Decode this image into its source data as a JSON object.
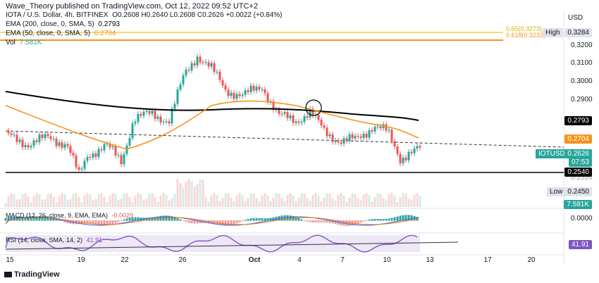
{
  "header": {
    "publisher": "Wave_Theory published on TradingView.com, Oct 12, 2022 09:52 UTC+2",
    "currency_label": "USD"
  },
  "legend": {
    "symbol_line": "IOTA / U.S. Dollar, 4h, BITFINEX",
    "ohlc": "O0.2608 H0.2640 L0.2608 C0.2626 +0.0022 (+0.84%)",
    "ema200_label": "EMA (200, close, 0, SMA, 5)",
    "ema200_value": "0.2793",
    "ema50_label": "EMA (50, close, 0, SMA, 5)",
    "ema50_value": "0.2704",
    "vol_label": "Vol",
    "vol_value": "7.581K"
  },
  "fib": {
    "fib_065": "0.65(0.3273)",
    "fib_0618": "0.618(0.3233)"
  },
  "price_axis": {
    "ticks": [
      "0.3200",
      "0.3100",
      "0.3000",
      "0.2900",
      "0.2520"
    ],
    "high_label": "High",
    "high_value": "0.3284",
    "ema200_tag": "0.2793",
    "ema50_tag": "0.2704",
    "symbol_tag": "IOTUSD",
    "symbol_price": "0.2626",
    "countdown": "07:53",
    "support_tag": "0.2540",
    "low_label": "Low",
    "low_value": "0.2450",
    "vol_tag": "7.581K"
  },
  "macd": {
    "label": "MACD (12, 26, close, 9, EMA, EMA)",
    "value": "-0.0029",
    "axis_value": "0.0000"
  },
  "rsi": {
    "label": "RSI (14, close, SMA, 14, 2)",
    "value": "41.91",
    "axis_value": "41.91"
  },
  "time_axis": {
    "labels": [
      "15",
      "19",
      "22",
      "26",
      "Oct",
      "4",
      "7",
      "10",
      "13",
      "17",
      "20"
    ]
  },
  "footer": {
    "brand": "TradingView"
  },
  "colors": {
    "up": "#26a69a",
    "down": "#ef5350",
    "ema200": "#000000",
    "ema50": "#f7931a",
    "fib_yellow": "#f5d142",
    "fib_orange": "#f7931a",
    "support": "#000000"
  }
}
